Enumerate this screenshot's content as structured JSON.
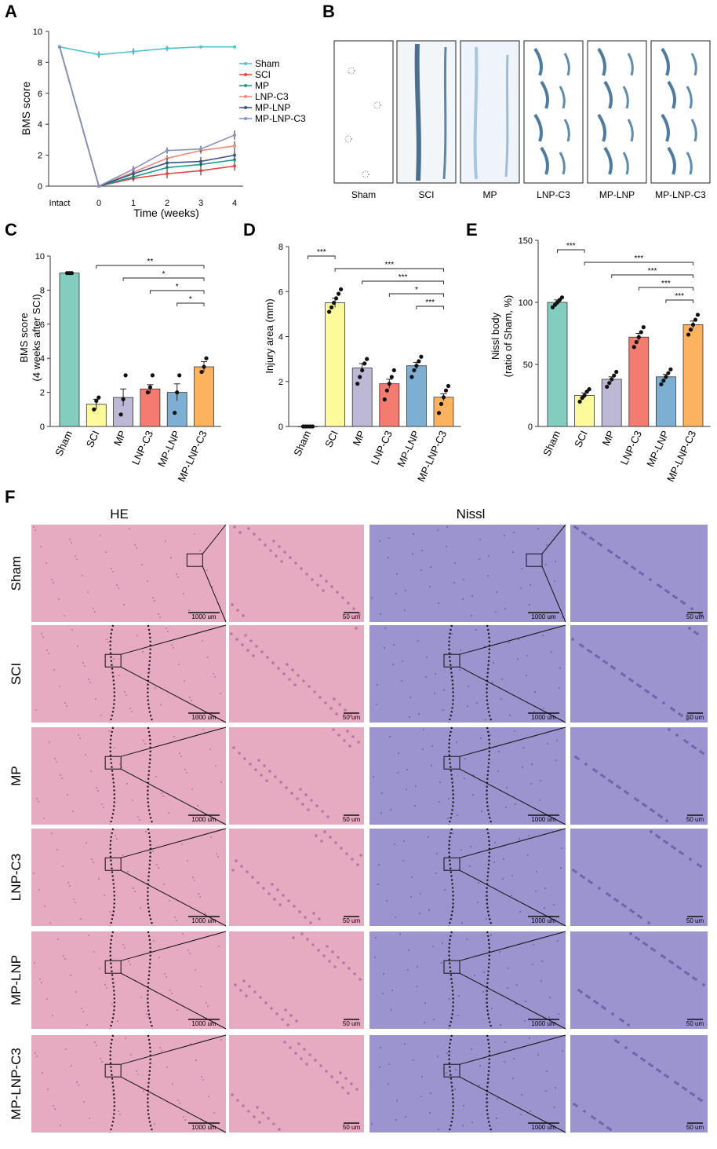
{
  "panels": {
    "A": "A",
    "B": "B",
    "C": "C",
    "D": "D",
    "E": "E",
    "F": "F"
  },
  "colors": {
    "Sham": "#4dc3cf",
    "SCI": "#e0463f",
    "MP": "#1a9a87",
    "LNP-C3": "#f08a79",
    "MP-LNP": "#3a5387",
    "MP-LNP-C3": "#8893bd",
    "bar_Sham": "#82cdbd",
    "bar_SCI": "#fcfa9a",
    "bar_MP": "#bcb8d6",
    "bar_LNP-C3": "#f47b70",
    "bar_MP-LNP": "#7dafd2",
    "bar_MP-LNP-C3": "#fcb25f",
    "he": "#e6aac1",
    "nissl": "#9b94cf"
  },
  "chart_data": [
    {
      "panel": "A",
      "type": "line",
      "x": [
        "Intact",
        "0",
        "1",
        "2",
        "3",
        "4"
      ],
      "xlabel": "Time (weeks)",
      "ylabel": "BMS score",
      "ylim": [
        0,
        10
      ],
      "yticks": [
        0,
        2,
        4,
        6,
        8,
        10
      ],
      "legend_position": "right",
      "series": [
        {
          "name": "Sham",
          "values": [
            9,
            8.5,
            8.7,
            8.9,
            9,
            9
          ],
          "err": [
            0,
            0.2,
            0.2,
            0.15,
            0,
            0
          ]
        },
        {
          "name": "SCI",
          "values": [
            9,
            0,
            0.5,
            0.8,
            1.0,
            1.3
          ],
          "err": [
            0,
            0,
            0.2,
            0.3,
            0.3,
            0.3
          ]
        },
        {
          "name": "MP",
          "values": [
            9,
            0,
            0.6,
            1.2,
            1.4,
            1.7
          ],
          "err": [
            0,
            0,
            0.2,
            0.3,
            0.3,
            0.3
          ]
        },
        {
          "name": "LNP-C3",
          "values": [
            9,
            0,
            0.9,
            1.8,
            2.3,
            2.6
          ],
          "err": [
            0,
            0,
            0.2,
            0.2,
            0.2,
            0.3
          ]
        },
        {
          "name": "MP-LNP",
          "values": [
            9,
            0,
            0.8,
            1.5,
            1.6,
            2.0
          ],
          "err": [
            0,
            0,
            0.2,
            0.3,
            0.3,
            0.3
          ]
        },
        {
          "name": "MP-LNP-C3",
          "values": [
            9,
            0,
            1.1,
            2.3,
            2.4,
            3.3
          ],
          "err": [
            0,
            0,
            0.2,
            0.2,
            0.2,
            0.3
          ]
        }
      ]
    },
    {
      "panel": "C",
      "type": "bar",
      "categories": [
        "Sham",
        "SCI",
        "MP",
        "LNP-C3",
        "MP-LNP",
        "MP-LNP-C3"
      ],
      "values": [
        9.0,
        1.3,
        1.7,
        2.2,
        2.0,
        3.5
      ],
      "err": [
        0.05,
        0.3,
        0.5,
        0.25,
        0.5,
        0.3
      ],
      "points": [
        [
          9,
          9,
          9
        ],
        [
          1,
          1.5,
          1.7
        ],
        [
          0.7,
          1.6,
          3
        ],
        [
          2,
          2.3,
          3
        ],
        [
          0.8,
          2,
          3
        ],
        [
          3.2,
          3.5,
          4
        ]
      ],
      "ylabel": "BMS score (4 weeks after SCI)",
      "ylabel_lines": [
        "BMS score",
        "(4 weeks after SCI)"
      ],
      "ylim": [
        0,
        10
      ],
      "yticks": [
        0,
        2,
        4,
        6,
        8,
        10
      ],
      "significance": [
        {
          "from": 1,
          "to": 5,
          "label": "**"
        },
        {
          "from": 2,
          "to": 5,
          "label": "*"
        },
        {
          "from": 3,
          "to": 5,
          "label": "*"
        },
        {
          "from": 4,
          "to": 5,
          "label": "*"
        }
      ]
    },
    {
      "panel": "D",
      "type": "bar",
      "categories": [
        "Sham",
        "SCI",
        "MP",
        "LNP-C3",
        "MP-LNP",
        "MP-LNP-C3"
      ],
      "values": [
        0,
        5.5,
        2.6,
        1.9,
        2.7,
        1.3
      ],
      "err": [
        0,
        0.2,
        0.2,
        0.2,
        0.15,
        0.15
      ],
      "points": [
        [
          0,
          0,
          0,
          0,
          0
        ],
        [
          5.1,
          5.3,
          5.5,
          5.7,
          5.9,
          6.1
        ],
        [
          1.9,
          2.2,
          2.5,
          2.8,
          3.0
        ],
        [
          1.2,
          1.6,
          1.9,
          2.2,
          2.5
        ],
        [
          2.2,
          2.5,
          2.7,
          2.9,
          3.1
        ],
        [
          0.6,
          1.0,
          1.3,
          1.6,
          1.8
        ]
      ],
      "ylabel": "Injury area (mm)",
      "ylim": [
        0,
        8
      ],
      "yticks": [
        0,
        2,
        4,
        6,
        8
      ],
      "significance": [
        {
          "from": 0,
          "to": 1,
          "label": "***"
        },
        {
          "from": 1,
          "to": 5,
          "label": "***"
        },
        {
          "from": 2,
          "to": 5,
          "label": "***"
        },
        {
          "from": 3,
          "to": 5,
          "label": "*"
        },
        {
          "from": 4,
          "to": 5,
          "label": "***"
        }
      ]
    },
    {
      "panel": "E",
      "type": "bar",
      "categories": [
        "Sham",
        "SCI",
        "MP",
        "LNP-C3",
        "MP-LNP",
        "MP-LNP-C3"
      ],
      "values": [
        100,
        25,
        38,
        72,
        40,
        82
      ],
      "err": [
        2,
        2,
        2,
        3,
        2,
        3
      ],
      "points": [
        [
          96,
          98,
          100,
          102,
          104
        ],
        [
          20,
          23,
          25,
          28,
          30
        ],
        [
          32,
          35,
          38,
          41,
          44
        ],
        [
          64,
          68,
          72,
          76,
          80
        ],
        [
          34,
          37,
          40,
          43,
          46
        ],
        [
          74,
          78,
          82,
          86,
          90
        ]
      ],
      "ylabel": "Nissl body (ratio of Sham, %)",
      "ylabel_lines": [
        "Nissl body",
        "(ratio of Sham, %)"
      ],
      "ylim": [
        0,
        150
      ],
      "yticks": [
        0,
        50,
        100,
        150
      ],
      "significance": [
        {
          "from": 0,
          "to": 1,
          "label": "***"
        },
        {
          "from": 1,
          "to": 5,
          "label": "***"
        },
        {
          "from": 2,
          "to": 5,
          "label": "***"
        },
        {
          "from": 3,
          "to": 5,
          "label": "***"
        },
        {
          "from": 4,
          "to": 5,
          "label": "***"
        }
      ]
    }
  ],
  "panel_b": {
    "labels": [
      "Sham",
      "SCI",
      "MP",
      "LNP-C3",
      "MP-LNP",
      "MP-LNP-C3"
    ]
  },
  "panel_f": {
    "column_titles": [
      "HE",
      "Nissl"
    ],
    "row_labels": [
      "Sham",
      "SCI",
      "MP",
      "LNP-C3",
      "MP-LNP",
      "MP-LNP-C3"
    ],
    "scale_large": "1000 um",
    "scale_small": "50 um"
  }
}
